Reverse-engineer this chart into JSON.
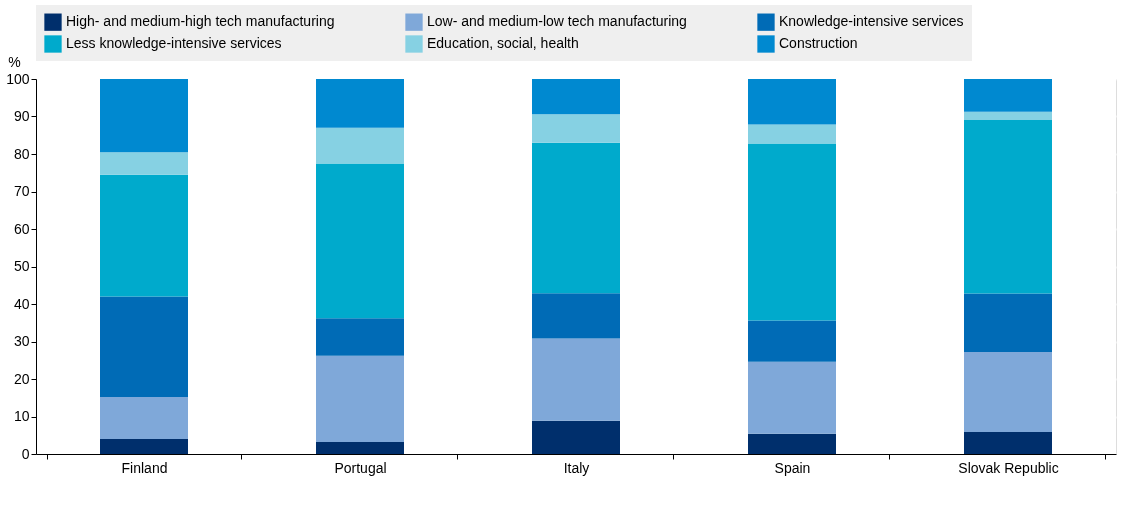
{
  "chart_data": {
    "type": "bar",
    "stacked": true,
    "ylabel": "%",
    "categories": [
      "Finland",
      "Portugal",
      "Italy",
      "Spain",
      "Slovak Republic"
    ],
    "series": [
      {
        "name": "High- and medium-high tech manufacturing",
        "color": "#002f6c",
        "values": [
          4.0,
          3.2,
          8.9,
          5.4,
          5.9
        ]
      },
      {
        "name": "Low- and medium-low tech manufacturing",
        "color": "#7fa8d9",
        "values": [
          11.2,
          23.0,
          21.9,
          19.2,
          21.3
        ]
      },
      {
        "name": "Knowledge-intensive services",
        "color": "#006bb6",
        "values": [
          26.8,
          10.0,
          12.1,
          11.0,
          15.6
        ]
      },
      {
        "name": "Less knowledge-intensive services",
        "color": "#00aacc",
        "values": [
          32.5,
          41.3,
          40.1,
          47.2,
          46.3
        ]
      },
      {
        "name": "Education, social, health",
        "color": "#86d1e3",
        "values": [
          6.0,
          9.5,
          7.6,
          5.1,
          2.2
        ]
      },
      {
        "name": "Construction",
        "color": "#0089d0",
        "values": [
          19.5,
          13.0,
          9.4,
          12.1,
          8.7
        ]
      }
    ],
    "ylim": [
      0,
      100
    ],
    "yticks": [
      0,
      10,
      20,
      30,
      40,
      50,
      60,
      70,
      80,
      90,
      100
    ],
    "grid": true,
    "legend": "top"
  }
}
